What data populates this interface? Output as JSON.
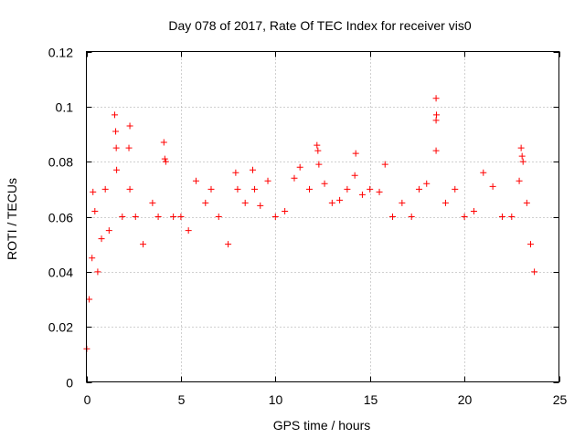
{
  "chart_data": {
    "type": "scatter",
    "title": "Day 078 of 2017, Rate Of TEC Index for receiver vis0",
    "xlabel": "GPS time / hours",
    "ylabel": "ROTI / TECUs",
    "xlim": [
      0,
      25
    ],
    "ylim": [
      0,
      0.12
    ],
    "xticks": [
      0,
      5,
      10,
      15,
      20,
      25
    ],
    "yticks": [
      0,
      0.02,
      0.04,
      0.06,
      0.08,
      0.1,
      0.12
    ],
    "xtick_labels": [
      "0",
      "5",
      "10",
      "15",
      "20",
      "25"
    ],
    "ytick_labels": [
      "0",
      "0.02",
      "0.04",
      "0.06",
      "0.08",
      "0.1",
      "0.12"
    ],
    "grid": true,
    "marker": "+",
    "color": "#ff0000",
    "series": [
      {
        "name": "ROTI",
        "points": [
          [
            0.02,
            0.012
          ],
          [
            0.15,
            0.03
          ],
          [
            0.3,
            0.045
          ],
          [
            0.35,
            0.069
          ],
          [
            0.45,
            0.062
          ],
          [
            0.6,
            0.04
          ],
          [
            0.8,
            0.052
          ],
          [
            1.0,
            0.07
          ],
          [
            1.2,
            0.055
          ],
          [
            1.5,
            0.097
          ],
          [
            1.55,
            0.091
          ],
          [
            1.6,
            0.077
          ],
          [
            1.58,
            0.085
          ],
          [
            1.9,
            0.06
          ],
          [
            2.3,
            0.093
          ],
          [
            2.25,
            0.085
          ],
          [
            2.3,
            0.07
          ],
          [
            2.6,
            0.06
          ],
          [
            3.0,
            0.05
          ],
          [
            3.5,
            0.065
          ],
          [
            3.8,
            0.06
          ],
          [
            4.1,
            0.087
          ],
          [
            4.15,
            0.081
          ],
          [
            4.2,
            0.08
          ],
          [
            4.6,
            0.06
          ],
          [
            5.0,
            0.06
          ],
          [
            5.4,
            0.055
          ],
          [
            5.8,
            0.073
          ],
          [
            6.3,
            0.065
          ],
          [
            6.6,
            0.07
          ],
          [
            7.0,
            0.06
          ],
          [
            7.5,
            0.05
          ],
          [
            7.9,
            0.076
          ],
          [
            8.0,
            0.07
          ],
          [
            8.4,
            0.065
          ],
          [
            8.8,
            0.077
          ],
          [
            8.9,
            0.07
          ],
          [
            9.2,
            0.064
          ],
          [
            9.6,
            0.073
          ],
          [
            10.0,
            0.06
          ],
          [
            10.5,
            0.062
          ],
          [
            11.0,
            0.074
          ],
          [
            11.3,
            0.078
          ],
          [
            11.8,
            0.07
          ],
          [
            12.2,
            0.086
          ],
          [
            12.25,
            0.084
          ],
          [
            12.3,
            0.079
          ],
          [
            12.6,
            0.072
          ],
          [
            13.0,
            0.065
          ],
          [
            13.4,
            0.066
          ],
          [
            13.8,
            0.07
          ],
          [
            14.2,
            0.075
          ],
          [
            14.25,
            0.083
          ],
          [
            14.6,
            0.068
          ],
          [
            15.0,
            0.07
          ],
          [
            15.5,
            0.069
          ],
          [
            15.8,
            0.079
          ],
          [
            16.2,
            0.06
          ],
          [
            16.7,
            0.065
          ],
          [
            17.2,
            0.06
          ],
          [
            17.6,
            0.07
          ],
          [
            18.0,
            0.072
          ],
          [
            18.5,
            0.103
          ],
          [
            18.52,
            0.097
          ],
          [
            18.5,
            0.095
          ],
          [
            18.5,
            0.084
          ],
          [
            19.0,
            0.065
          ],
          [
            19.5,
            0.07
          ],
          [
            20.0,
            0.06
          ],
          [
            20.5,
            0.062
          ],
          [
            21.0,
            0.076
          ],
          [
            21.5,
            0.071
          ],
          [
            22.0,
            0.06
          ],
          [
            22.5,
            0.06
          ],
          [
            22.9,
            0.073
          ],
          [
            23.0,
            0.085
          ],
          [
            23.05,
            0.082
          ],
          [
            23.1,
            0.08
          ],
          [
            23.3,
            0.065
          ],
          [
            23.5,
            0.05
          ],
          [
            23.7,
            0.04
          ]
        ]
      }
    ]
  }
}
